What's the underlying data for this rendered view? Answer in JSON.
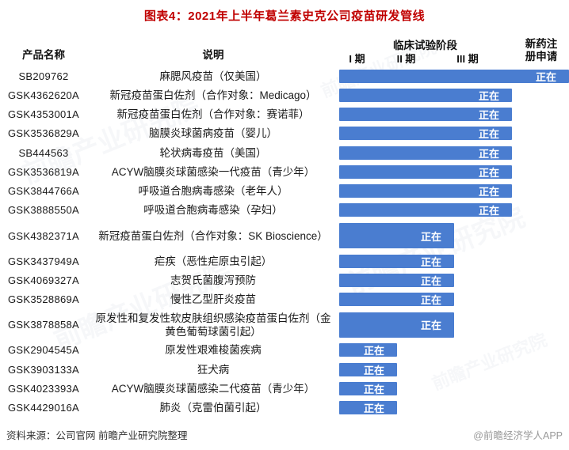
{
  "title": "图表4：2021年上半年葛兰素史克公司疫苗研发管线",
  "header": {
    "product": "产品名称",
    "description": "说明",
    "clinical": "临床试验阶段",
    "phase1": "I 期",
    "phase2": "II 期",
    "phase3": "III 期",
    "registration": "新药注册申请"
  },
  "footer": {
    "source": "资料来源：公司官网 前瞻产业研究院整理",
    "credit": "@前瞻经济学人APP"
  },
  "watermark": {
    "text": "前瞻产业研究院"
  },
  "colors": {
    "bar": "#4a7dd0",
    "title": "#c00000",
    "bar_text": "#ffffff"
  },
  "chart_data": {
    "type": "bar",
    "title": "图表4：2021年上半年葛兰素史克公司疫苗研发管线",
    "orientation": "horizontal",
    "stages": [
      "I期",
      "II期",
      "III期",
      "新药注册申请"
    ],
    "status_label": "正在",
    "columns": [
      "产品名称",
      "说明",
      "临床试验阶段",
      "新药注册申请"
    ],
    "rows": [
      {
        "code": "SB209762",
        "desc": "麻腮风疫苗（仅美国）",
        "stage": "新药注册申请",
        "stage_index": 4,
        "status": "正在"
      },
      {
        "code": "GSK4362620A",
        "desc": "新冠疫苗蛋白佐剂（合作对象：Medicago）",
        "stage": "III期",
        "stage_index": 3,
        "status": "正在"
      },
      {
        "code": "GSK4353001A",
        "desc": "新冠疫苗蛋白佐剂（合作对象：赛诺菲）",
        "stage": "III期",
        "stage_index": 3,
        "status": "正在"
      },
      {
        "code": "GSK3536829A",
        "desc": "脑膜炎球菌病疫苗（婴儿）",
        "stage": "III期",
        "stage_index": 3,
        "status": "正在"
      },
      {
        "code": "SB444563",
        "desc": "轮状病毒疫苗（美国）",
        "stage": "III期",
        "stage_index": 3,
        "status": "正在"
      },
      {
        "code": "GSK3536819A",
        "desc": "ACYW脑膜炎球菌感染一代疫苗（青少年）",
        "stage": "III期",
        "stage_index": 3,
        "status": "正在"
      },
      {
        "code": "GSK3844766A",
        "desc": "呼吸道合胞病毒感染（老年人）",
        "stage": "III期",
        "stage_index": 3,
        "status": "正在"
      },
      {
        "code": "GSK3888550A",
        "desc": "呼吸道合胞病毒感染（孕妇）",
        "stage": "III期",
        "stage_index": 3,
        "status": "正在"
      },
      {
        "code": "GSK4382371A",
        "desc": "新冠疫苗蛋白佐剂（合作对象：SK Bioscience）",
        "stage": "II期",
        "stage_index": 2,
        "status": "正在"
      },
      {
        "code": "GSK3437949A",
        "desc": "疟疾（恶性疟原虫引起）",
        "stage": "II期",
        "stage_index": 2,
        "status": "正在"
      },
      {
        "code": "GSK4069327A",
        "desc": "志贺氏菌腹泻预防",
        "stage": "II期",
        "stage_index": 2,
        "status": "正在"
      },
      {
        "code": "GSK3528869A",
        "desc": "慢性乙型肝炎疫苗",
        "stage": "II期",
        "stage_index": 2,
        "status": "正在"
      },
      {
        "code": "GSK3878858A",
        "desc": "原发性和复发性软皮肤组织感染疫苗蛋白佐剂（金黄色葡萄球菌引起）",
        "stage": "II期",
        "stage_index": 2,
        "status": "正在"
      },
      {
        "code": "GSK2904545A",
        "desc": "原发性艰难梭菌疾病",
        "stage": "I期",
        "stage_index": 1,
        "status": "正在"
      },
      {
        "code": "GSK3903133A",
        "desc": "狂犬病",
        "stage": "I期",
        "stage_index": 1,
        "status": "正在"
      },
      {
        "code": "GSK4023393A",
        "desc": "ACYW脑膜炎球菌感染二代疫苗（青少年）",
        "stage": "I期",
        "stage_index": 1,
        "status": "正在"
      },
      {
        "code": "GSK4429016A",
        "desc": "肺炎（克雷伯菌引起）",
        "stage": "I期",
        "stage_index": 1,
        "status": "正在"
      }
    ]
  }
}
